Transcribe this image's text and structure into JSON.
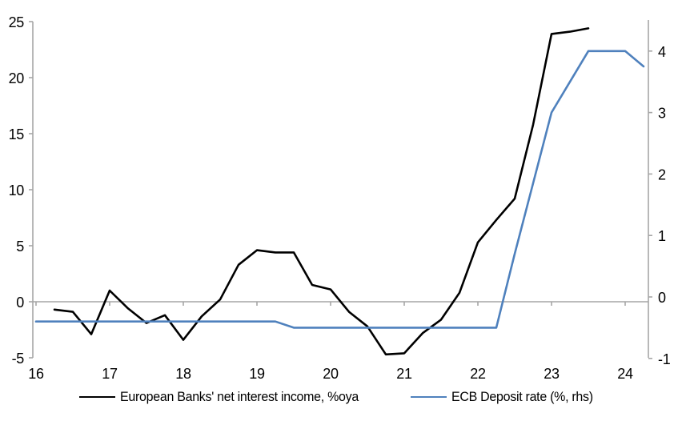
{
  "chart_data": {
    "type": "line",
    "title": "",
    "background_color": "#FFFFFF",
    "axis_color": "#A6A6A6",
    "zero_line": true,
    "grid": "none",
    "legend_position": "bottom-center",
    "x_axis": {
      "ticks": [
        16,
        17,
        18,
        19,
        20,
        21,
        22,
        23,
        24
      ],
      "min": 16,
      "max": 24.32
    },
    "y_axis_left": {
      "ticks": [
        25,
        20,
        15,
        10,
        5,
        0,
        -5
      ],
      "min": -5,
      "max": 25
    },
    "y_axis_right": {
      "ticks": [
        4,
        3,
        2,
        1,
        0,
        -1
      ],
      "min": -1,
      "max": 4.47
    },
    "series": [
      {
        "name": "European Banks' net interest income, %oya",
        "axis": "left",
        "color": "#000000",
        "x": [
          16.25,
          16.5,
          16.75,
          17.0,
          17.25,
          17.5,
          17.75,
          18.0,
          18.25,
          18.5,
          18.75,
          19.0,
          19.25,
          19.5,
          19.75,
          20.0,
          20.25,
          20.5,
          20.75,
          21.0,
          21.25,
          21.5,
          21.75,
          22.0,
          22.25,
          22.5,
          22.75,
          23.0,
          23.25,
          23.5
        ],
        "values": [
          -0.7,
          -0.9,
          -2.9,
          1.0,
          -0.6,
          -1.9,
          -1.2,
          -3.4,
          -1.3,
          0.2,
          3.3,
          4.6,
          4.4,
          4.4,
          1.5,
          1.1,
          -0.9,
          -2.2,
          -4.7,
          -4.6,
          -2.8,
          -1.6,
          0.8,
          5.3,
          7.3,
          9.2,
          15.8,
          23.9,
          24.1,
          24.4
        ]
      },
      {
        "name": "ECB Deposit rate (%, rhs)",
        "axis": "right",
        "color": "#4F81BD",
        "x": [
          16.0,
          16.25,
          16.5,
          16.75,
          17.0,
          17.25,
          17.5,
          17.75,
          18.0,
          18.25,
          18.5,
          18.75,
          19.0,
          19.25,
          19.5,
          19.75,
          20.0,
          20.25,
          20.5,
          20.75,
          21.0,
          21.25,
          21.5,
          21.75,
          22.0,
          22.25,
          22.5,
          22.75,
          23.0,
          23.25,
          23.5,
          23.75,
          24.0,
          24.25
        ],
        "values": [
          -0.4,
          -0.4,
          -0.4,
          -0.4,
          -0.4,
          -0.4,
          -0.4,
          -0.4,
          -0.4,
          -0.4,
          -0.4,
          -0.4,
          -0.4,
          -0.4,
          -0.5,
          -0.5,
          -0.5,
          -0.5,
          -0.5,
          -0.5,
          -0.5,
          -0.5,
          -0.5,
          -0.5,
          -0.5,
          -0.5,
          0.7,
          1.85,
          3.0,
          3.5,
          4.0,
          4.0,
          4.0,
          3.75
        ]
      }
    ]
  },
  "legend": {
    "nii_label": "European Banks' net interest income, %oya",
    "ecb_label": "ECB Deposit rate (%, rhs)"
  }
}
